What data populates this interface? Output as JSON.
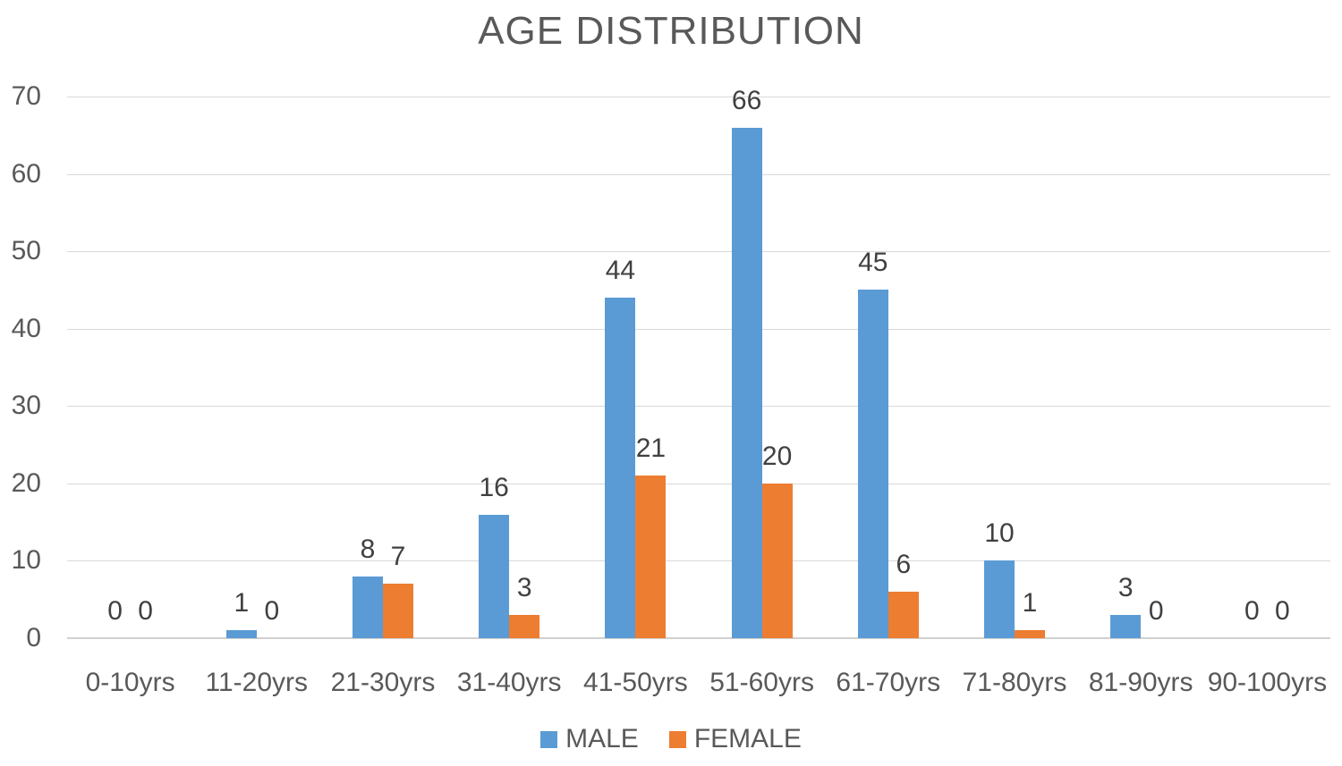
{
  "title": "AGE DISTRIBUTION",
  "chart_data": {
    "type": "bar",
    "title": "AGE DISTRIBUTION",
    "categories": [
      "0-10yrs",
      "11-20yrs",
      "21-30yrs",
      "31-40yrs",
      "41-50yrs",
      "51-60yrs",
      "61-70yrs",
      "71-80yrs",
      "81-90yrs",
      "90-100yrs"
    ],
    "series": [
      {
        "name": "MALE",
        "color": "#5B9BD5",
        "values": [
          0,
          1,
          8,
          16,
          44,
          66,
          45,
          10,
          3,
          0
        ]
      },
      {
        "name": "FEMALE",
        "color": "#ED7D31",
        "values": [
          0,
          0,
          7,
          3,
          21,
          20,
          6,
          1,
          0,
          0
        ]
      }
    ],
    "ylim": [
      0,
      70
    ],
    "ytick_step": 10,
    "yticks": [
      0,
      10,
      20,
      30,
      40,
      50,
      60,
      70
    ],
    "grid": true,
    "data_labels": true,
    "legend_position": "bottom",
    "xlabel": "",
    "ylabel": ""
  },
  "colors": {
    "male_series": "#5B9BD5",
    "female_series": "#ED7D31",
    "gridline": "#D9D9D9",
    "axis_line": "#D0D0D0",
    "title_text": "#595959",
    "tick_text": "#595959",
    "data_label_text": "#404040",
    "background": "#FFFFFF"
  }
}
